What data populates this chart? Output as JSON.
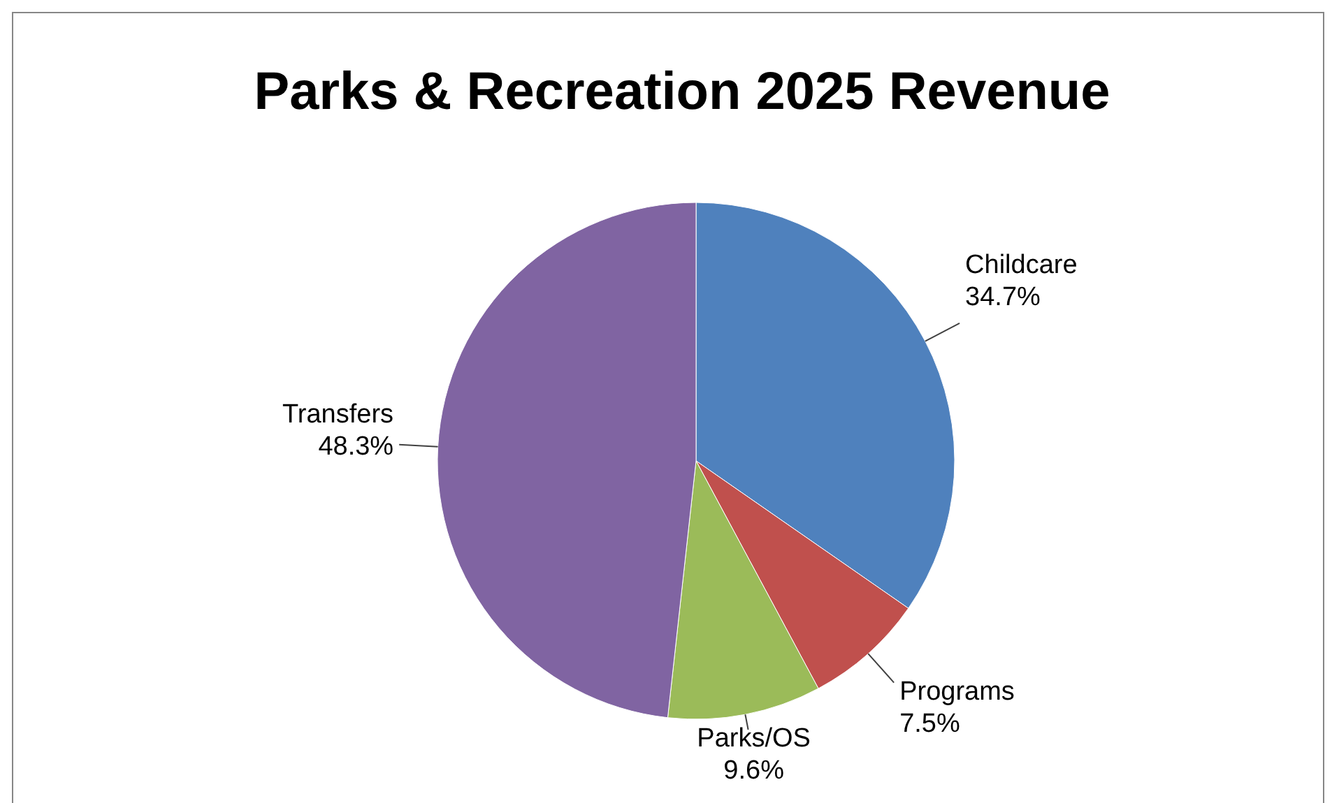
{
  "chart_data": {
    "type": "pie",
    "title": "Parks & Recreation 2025 Revenue",
    "categories": [
      "Childcare",
      "Programs",
      "Parks/OS",
      "Transfers"
    ],
    "values": [
      34.7,
      7.5,
      9.6,
      48.3
    ],
    "colors": [
      "#4f81bd",
      "#c0504d",
      "#9bbb59",
      "#8064a2"
    ],
    "value_labels": [
      "34.7%",
      "7.5%",
      "9.6%",
      "48.3%"
    ],
    "legend": false
  }
}
